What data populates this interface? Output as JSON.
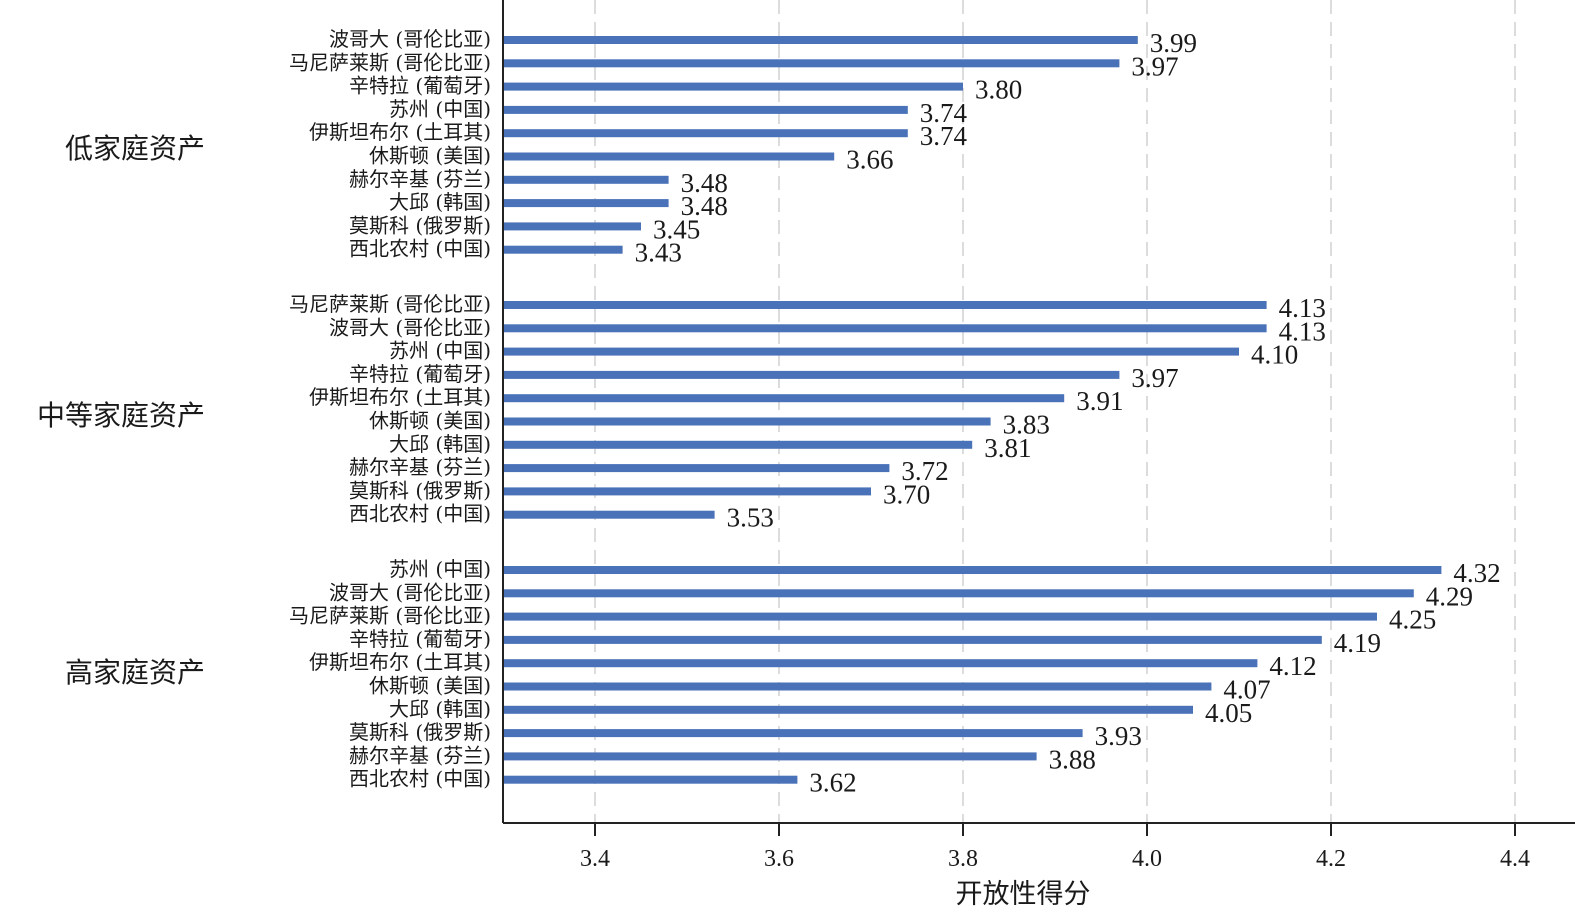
{
  "chart_data": {
    "type": "bar",
    "orientation": "horizontal",
    "title": "",
    "xlabel": "开放性得分",
    "ylabel": "",
    "xlim": [
      3.3,
      4.44
    ],
    "xticks": [
      "3.4",
      "3.6",
      "3.8",
      "4.0",
      "4.2",
      "4.4"
    ],
    "grid": "vertical dashed",
    "bar_color": "#4a72b8",
    "groups": [
      {
        "name": "低家庭资产",
        "categories": [
          "波哥大 (哥伦比亚)",
          "马尼萨莱斯 (哥伦比亚)",
          "辛特拉 (葡萄牙)",
          "苏州 (中国)",
          "伊斯坦布尔 (土耳其)",
          "休斯顿 (美国)",
          "赫尔辛基 (芬兰)",
          "大邱 (韩国)",
          "莫斯科 (俄罗斯)",
          "西北农村 (中国)"
        ],
        "values": [
          3.99,
          3.97,
          3.8,
          3.74,
          3.74,
          3.66,
          3.48,
          3.48,
          3.45,
          3.43
        ],
        "labels": [
          "3.99",
          "3.97",
          "3.80",
          "3.74",
          "3.74",
          "3.66",
          "3.48",
          "3.48",
          "3.45",
          "3.43"
        ]
      },
      {
        "name": "中等家庭资产",
        "categories": [
          "马尼萨莱斯 (哥伦比亚)",
          "波哥大 (哥伦比亚)",
          "苏州 (中国)",
          "辛特拉 (葡萄牙)",
          "伊斯坦布尔 (土耳其)",
          "休斯顿 (美国)",
          "大邱 (韩国)",
          "赫尔辛基 (芬兰)",
          "莫斯科 (俄罗斯)",
          "西北农村 (中国)"
        ],
        "values": [
          4.13,
          4.13,
          4.1,
          3.97,
          3.91,
          3.83,
          3.81,
          3.72,
          3.7,
          3.53
        ],
        "labels": [
          "4.13",
          "4.13",
          "4.10",
          "3.97",
          "3.91",
          "3.83",
          "3.81",
          "3.72",
          "3.70",
          "3.53"
        ]
      },
      {
        "name": "高家庭资产",
        "categories": [
          "苏州 (中国)",
          "波哥大 (哥伦比亚)",
          "马尼萨莱斯 (哥伦比亚)",
          "辛特拉 (葡萄牙)",
          "伊斯坦布尔 (土耳其)",
          "休斯顿 (美国)",
          "大邱 (韩国)",
          "莫斯科 (俄罗斯)",
          "赫尔辛基 (芬兰)",
          "西北农村 (中国)"
        ],
        "values": [
          4.32,
          4.29,
          4.25,
          4.19,
          4.12,
          4.07,
          4.05,
          3.93,
          3.88,
          3.62
        ],
        "labels": [
          "4.32",
          "4.29",
          "4.25",
          "4.19",
          "4.12",
          "4.07",
          "4.05",
          "3.93",
          "3.88",
          "3.62"
        ]
      }
    ]
  }
}
